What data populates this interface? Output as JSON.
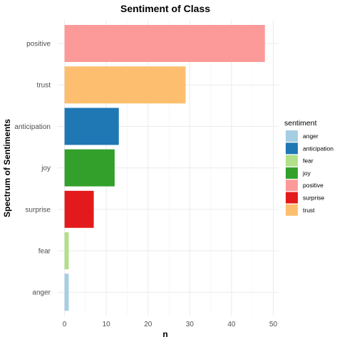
{
  "chart_data": {
    "type": "bar",
    "orientation": "horizontal",
    "title": "Sentiment of Class",
    "xlabel": "n",
    "ylabel": "Spectrum of Sentiments",
    "xlim": [
      0,
      50
    ],
    "xticks": [
      0,
      10,
      20,
      30,
      40,
      50
    ],
    "grid": true,
    "categories": [
      "positive",
      "trust",
      "anticipation",
      "joy",
      "surprise",
      "fear",
      "anger"
    ],
    "values": [
      48,
      29,
      13,
      12,
      7,
      1,
      1
    ],
    "bar_colors": [
      "#fb9a99",
      "#fdbf6f",
      "#1f78b4",
      "#33a02c",
      "#e31a1c",
      "#b2df8a",
      "#a6cee3"
    ],
    "legend": {
      "title": "sentiment",
      "position": "right",
      "entries": [
        {
          "label": "anger",
          "color": "#a6cee3"
        },
        {
          "label": "anticipation",
          "color": "#1f78b4"
        },
        {
          "label": "fear",
          "color": "#b2df8a"
        },
        {
          "label": "joy",
          "color": "#33a02c"
        },
        {
          "label": "positive",
          "color": "#fb9a99"
        },
        {
          "label": "surprise",
          "color": "#e31a1c"
        },
        {
          "label": "trust",
          "color": "#fdbf6f"
        }
      ]
    }
  }
}
